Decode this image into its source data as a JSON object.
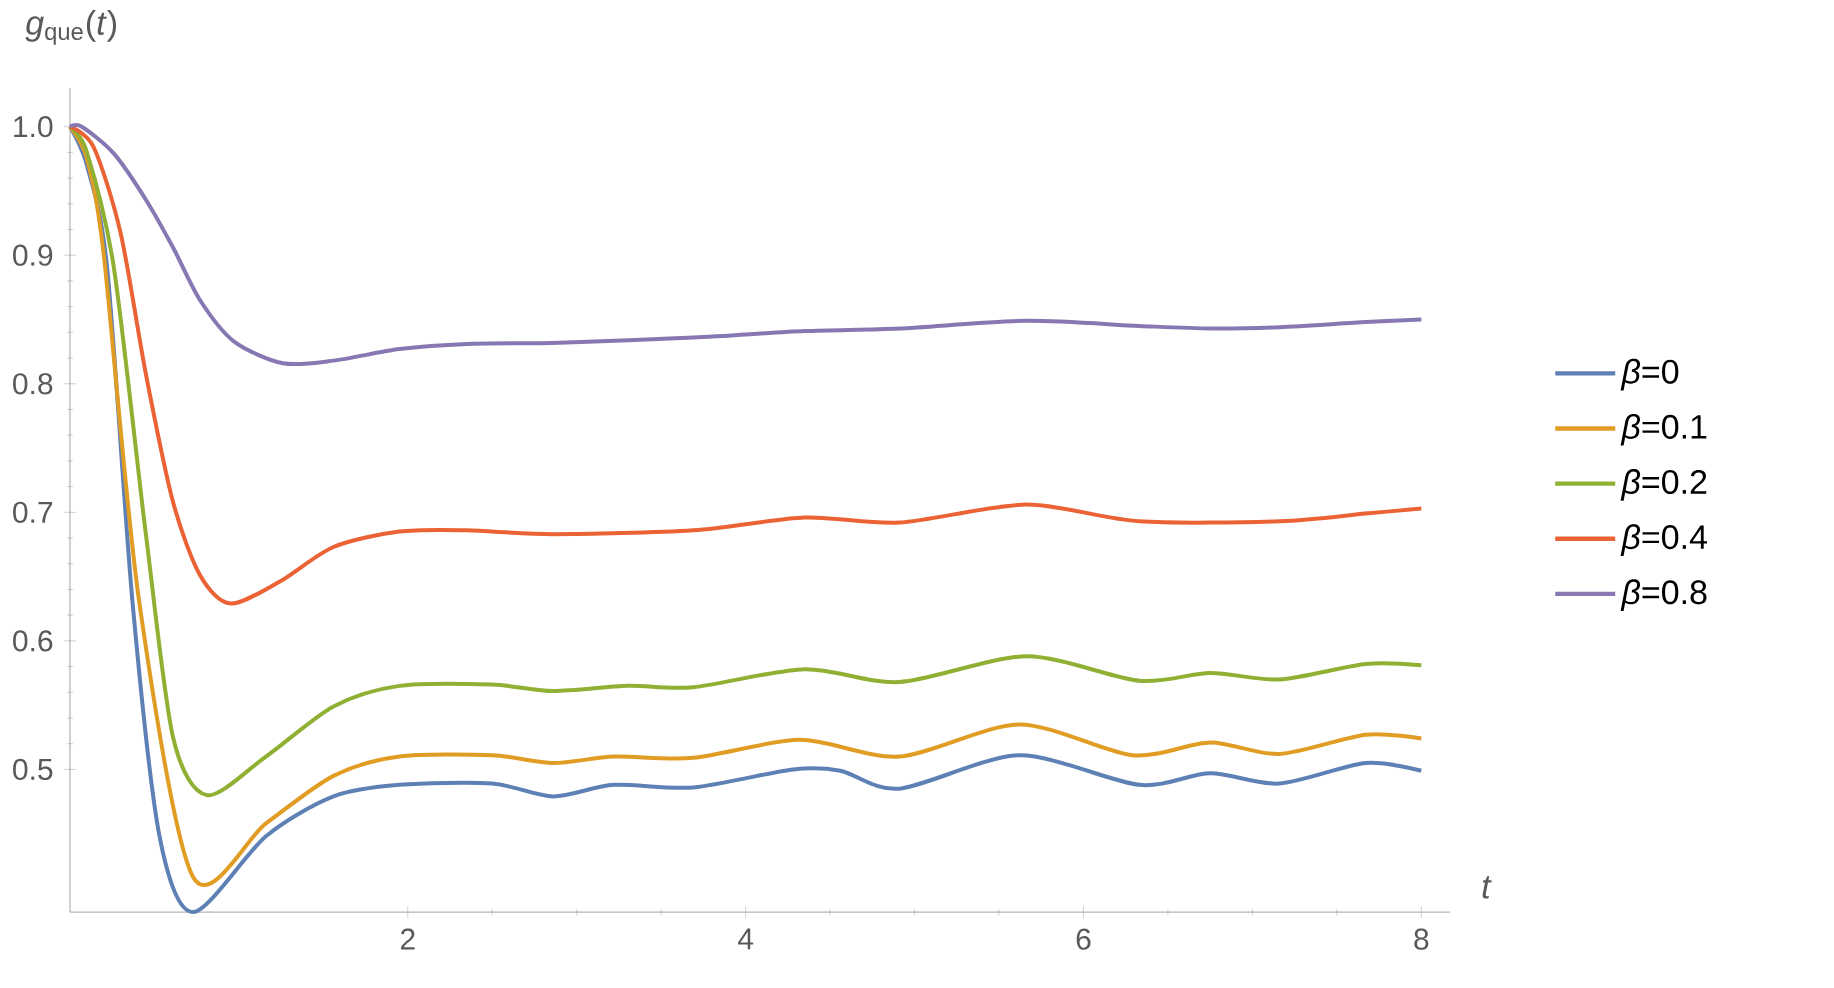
{
  "chart_data": {
    "type": "line",
    "xlabel": "t",
    "ylabel": "*g*$_{que}$(*t*)",
    "xlim": [
      0,
      8.17
    ],
    "ylim": [
      0.389,
      1.03
    ],
    "xticks": [
      2,
      4,
      6,
      8
    ],
    "yticks": [
      0.5,
      0.6,
      0.7,
      0.8,
      0.9,
      {
        "value": 1.0,
        "label": "1.0"
      }
    ],
    "legend": "right",
    "grid": false,
    "marker": "none",
    "line_style": "solid",
    "series": [
      {
        "name": "*β*=0",
        "color": "#5e81b5",
        "x": [
          0,
          0.1,
          0.22,
          0.37,
          0.53,
          0.73,
          1.16,
          1.56,
          1.95,
          2.5,
          2.86,
          3.22,
          3.69,
          4.28,
          4.56,
          4.91,
          5.62,
          6.33,
          6.75,
          7.16,
          7.67,
          8
        ],
        "values": [
          1.0,
          0.97,
          0.89,
          0.63,
          0.448,
          0.389,
          0.448,
          0.479,
          0.488,
          0.489,
          0.479,
          0.488,
          0.486,
          0.5,
          0.499,
          0.485,
          0.511,
          0.488,
          0.497,
          0.489,
          0.505,
          0.499
        ]
      },
      {
        "name": "*β*=0.1",
        "color": "#e19c24",
        "x": [
          0,
          0.1,
          0.2,
          0.41,
          0.73,
          1.16,
          1.56,
          1.95,
          2.5,
          2.86,
          3.22,
          3.69,
          4.32,
          4.91,
          5.62,
          6.29,
          6.75,
          7.16,
          7.67,
          8
        ],
        "values": [
          1.0,
          0.975,
          0.9,
          0.63,
          0.416,
          0.458,
          0.495,
          0.51,
          0.511,
          0.505,
          0.51,
          0.509,
          0.523,
          0.51,
          0.535,
          0.511,
          0.521,
          0.512,
          0.527,
          0.524
        ]
      },
      {
        "name": "*β*=0.2",
        "color": "#8fb032",
        "x": [
          0,
          0.1,
          0.26,
          0.45,
          0.61,
          0.81,
          1.16,
          1.56,
          1.95,
          2.5,
          2.86,
          3.3,
          3.69,
          4.35,
          4.91,
          5.66,
          6.33,
          6.75,
          7.16,
          7.67,
          8
        ],
        "values": [
          1.0,
          0.98,
          0.89,
          0.682,
          0.525,
          0.48,
          0.51,
          0.549,
          0.565,
          0.566,
          0.561,
          0.565,
          0.564,
          0.578,
          0.568,
          0.588,
          0.569,
          0.575,
          0.57,
          0.582,
          0.581
        ]
      },
      {
        "name": "*β*=0.4",
        "color": "#eb6235",
        "x": [
          0,
          0.14,
          0.3,
          0.45,
          0.61,
          0.77,
          0.95,
          1.24,
          1.56,
          1.95,
          2.35,
          2.86,
          3.69,
          4.35,
          4.91,
          5.66,
          6.33,
          7.16,
          7.67,
          8
        ],
        "values": [
          1.0,
          0.984,
          0.917,
          0.807,
          0.708,
          0.651,
          0.629,
          0.646,
          0.673,
          0.685,
          0.686,
          0.683,
          0.686,
          0.696,
          0.692,
          0.706,
          0.693,
          0.693,
          0.699,
          0.703
        ]
      },
      {
        "name": "*β*=0.8",
        "color": "#8778b3",
        "x": [
          0,
          0.07,
          0.26,
          0.45,
          0.61,
          0.77,
          0.97,
          1.26,
          1.56,
          1.95,
          2.35,
          2.9,
          3.69,
          4.35,
          4.91,
          5.66,
          6.33,
          6.75,
          7.16,
          7.67,
          8
        ],
        "values": [
          1.0,
          1.0,
          0.979,
          0.943,
          0.906,
          0.865,
          0.833,
          0.816,
          0.818,
          0.827,
          0.831,
          0.832,
          0.836,
          0.841,
          0.843,
          0.849,
          0.845,
          0.843,
          0.844,
          0.848,
          0.85
        ]
      }
    ]
  }
}
